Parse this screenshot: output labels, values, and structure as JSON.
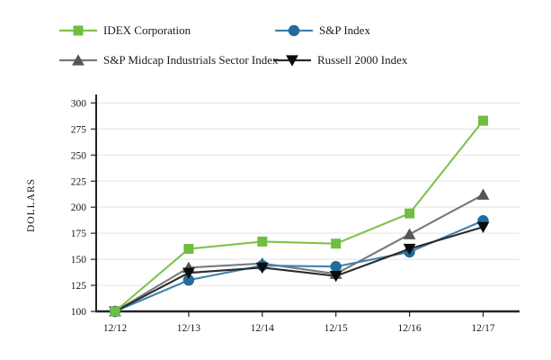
{
  "legend": {
    "items": [
      {
        "label": "IDEX Corporation",
        "marker": "square",
        "line_color": "#7fc24e",
        "marker_color": "#6fbd41"
      },
      {
        "label": "S&P Index",
        "marker": "circle",
        "line_color": "#4182aa",
        "marker_color": "#226d9a"
      },
      {
        "label": "S&P Midcap Industrials Sector Index",
        "marker": "triangle-up",
        "line_color": "#77787b",
        "marker_color": "#55565a"
      },
      {
        "label": "Russell 2000 Index",
        "marker": "triangle-down",
        "line_color": "#2b2b2d",
        "marker_color": "#0d0d0f"
      }
    ]
  },
  "chart_data": {
    "type": "line",
    "title": "",
    "xlabel": "",
    "ylabel": "DOLLARS",
    "categories": [
      "12/12",
      "12/13",
      "12/14",
      "12/15",
      "12/16",
      "12/17"
    ],
    "yticks": [
      100,
      125,
      150,
      175,
      200,
      225,
      250,
      275,
      300
    ],
    "ylim": [
      100,
      300
    ],
    "grid": true,
    "grid_color": "#e8e8e8",
    "axis_color": "#242424",
    "text_color": "#1a1a1a",
    "legend_position": "top",
    "series": [
      {
        "name": "IDEX Corporation",
        "marker": "square",
        "line_color": "#7fc24e",
        "marker_color": "#6fbd41",
        "values": [
          100,
          160,
          167,
          165,
          194,
          283
        ]
      },
      {
        "name": "S&P Index",
        "marker": "circle",
        "line_color": "#4182aa",
        "marker_color": "#226d9a",
        "values": [
          100,
          130,
          144,
          143,
          157,
          187
        ]
      },
      {
        "name": "S&P Midcap Industrials Sector Index",
        "marker": "triangle-up",
        "line_color": "#77787b",
        "marker_color": "#55565a",
        "values": [
          100,
          142,
          146,
          136,
          174,
          212
        ]
      },
      {
        "name": "Russell 2000 Index",
        "marker": "triangle-down",
        "line_color": "#2b2b2d",
        "marker_color": "#0d0d0f",
        "values": [
          100,
          137,
          142,
          134,
          160,
          181
        ]
      }
    ],
    "draw_order": [
      2,
      1,
      3,
      0
    ]
  }
}
